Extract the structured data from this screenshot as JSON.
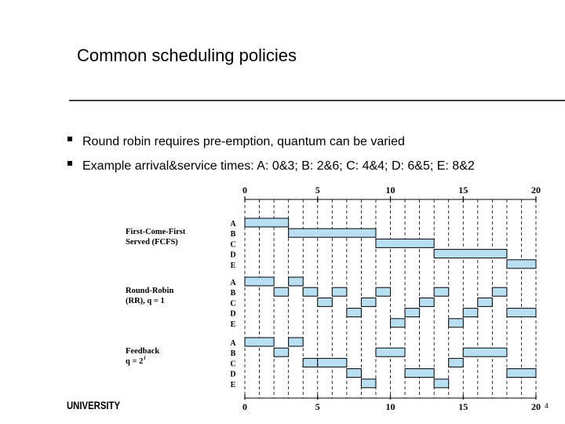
{
  "title": "Common scheduling policies",
  "bullets": [
    "Round robin requires pre-emption, quantum can be varied",
    "Example arrival&service times: A: 0&3; B: 2&6; C: 4&4; D: 6&5; E: 8&2"
  ],
  "diagram": {
    "xlim": [
      0,
      20
    ],
    "ticks": [
      0,
      5,
      10,
      15,
      20
    ],
    "policies": [
      {
        "label_lines": [
          "First-Come-First",
          "Served (FCFS)"
        ],
        "processes": [
          {
            "name": "A",
            "runs": [
              [
                0,
                3
              ]
            ]
          },
          {
            "name": "B",
            "runs": [
              [
                3,
                9
              ]
            ]
          },
          {
            "name": "C",
            "runs": [
              [
                9,
                13
              ]
            ]
          },
          {
            "name": "D",
            "runs": [
              [
                13,
                18
              ]
            ]
          },
          {
            "name": "E",
            "runs": [
              [
                18,
                20
              ]
            ]
          }
        ]
      },
      {
        "label_lines": [
          "Round-Robin",
          "(RR), q = 1"
        ],
        "processes": [
          {
            "name": "A",
            "runs": [
              [
                0,
                2
              ],
              [
                3,
                4
              ]
            ]
          },
          {
            "name": "B",
            "runs": [
              [
                2,
                3
              ],
              [
                4,
                5
              ],
              [
                6,
                7
              ],
              [
                9,
                10
              ],
              [
                13,
                14
              ],
              [
                17,
                18
              ]
            ]
          },
          {
            "name": "C",
            "runs": [
              [
                5,
                6
              ],
              [
                8,
                9
              ],
              [
                12,
                13
              ],
              [
                16,
                17
              ]
            ]
          },
          {
            "name": "D",
            "runs": [
              [
                7,
                8
              ],
              [
                11,
                12
              ],
              [
                15,
                16
              ],
              [
                18,
                20
              ]
            ]
          },
          {
            "name": "E",
            "runs": [
              [
                10,
                11
              ],
              [
                14,
                15
              ]
            ]
          }
        ]
      },
      {
        "label_lines": [
          "Feedback",
          "q = 2"
        ],
        "superscript": "i",
        "processes": [
          {
            "name": "A",
            "runs": [
              [
                0,
                2
              ],
              [
                3,
                4
              ]
            ]
          },
          {
            "name": "B",
            "runs": [
              [
                2,
                3
              ],
              [
                9,
                11
              ],
              [
                15,
                18
              ]
            ]
          },
          {
            "name": "C",
            "runs": [
              [
                4,
                5
              ],
              [
                5,
                7
              ],
              [
                14,
                15
              ]
            ]
          },
          {
            "name": "D",
            "runs": [
              [
                7,
                8
              ],
              [
                11,
                13
              ],
              [
                18,
                20
              ]
            ]
          },
          {
            "name": "E",
            "runs": [
              [
                8,
                9
              ],
              [
                13,
                14
              ]
            ]
          }
        ]
      }
    ]
  },
  "footer": {
    "logo": "UNIVERSITY",
    "page": "4"
  }
}
